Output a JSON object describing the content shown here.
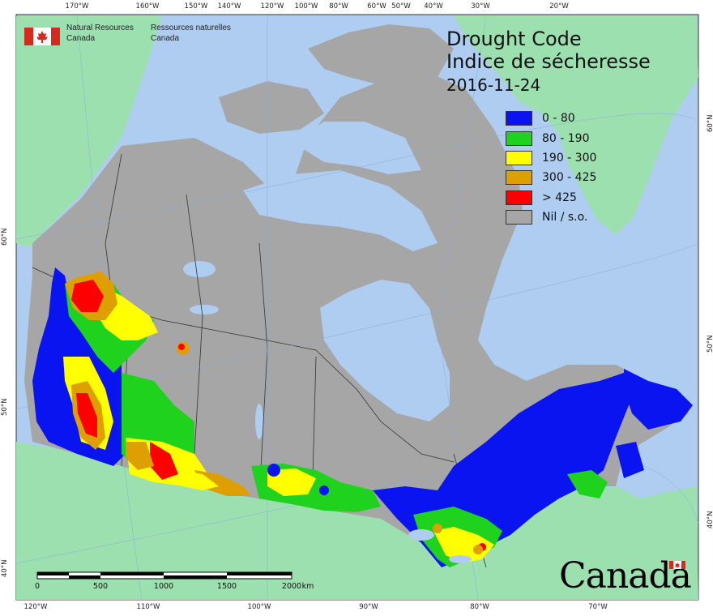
{
  "title": {
    "english": "Drought Code",
    "french": "Indice de sécheresse",
    "date": "2016-11-24"
  },
  "agency": {
    "english_line1": "Natural Resources",
    "english_line2": "Canada",
    "french_line1": "Ressources naturelles",
    "french_line2": "Canada"
  },
  "legend": [
    {
      "label": "0 - 80",
      "color": "#0a14f0"
    },
    {
      "label": "80 - 190",
      "color": "#1ed21e"
    },
    {
      "label": "190 - 300",
      "color": "#ffff00"
    },
    {
      "label": "300 - 425",
      "color": "#dea000"
    },
    {
      "label": "> 425",
      "color": "#ff0000"
    },
    {
      "label": "Nil / s.o.",
      "color": "#a6a6a6"
    }
  ],
  "graticule": {
    "top": [
      "170°W",
      "160°W",
      "150°W",
      "140°W",
      "120°W",
      "100°W",
      "80°W",
      "60°W",
      "50°W",
      "40°W",
      "30°W",
      "20°W"
    ],
    "bottom": [
      "120°W",
      "110°W",
      "100°W",
      "90°W",
      "80°W",
      "70°W"
    ],
    "left": [
      "60°N",
      "50°N",
      "40°N"
    ],
    "right": [
      "60°N",
      "50°N",
      "40°N"
    ]
  },
  "scale_bar": {
    "labels": [
      "0",
      "500",
      "1000",
      "1500",
      "2000"
    ],
    "unit": "km"
  },
  "wordmark": "Canada",
  "colors": {
    "ocean": "#aecdf0",
    "foreign_land": "#9ce0b0",
    "canada_nil": "#a6a6a6",
    "border_line": "#333333"
  }
}
